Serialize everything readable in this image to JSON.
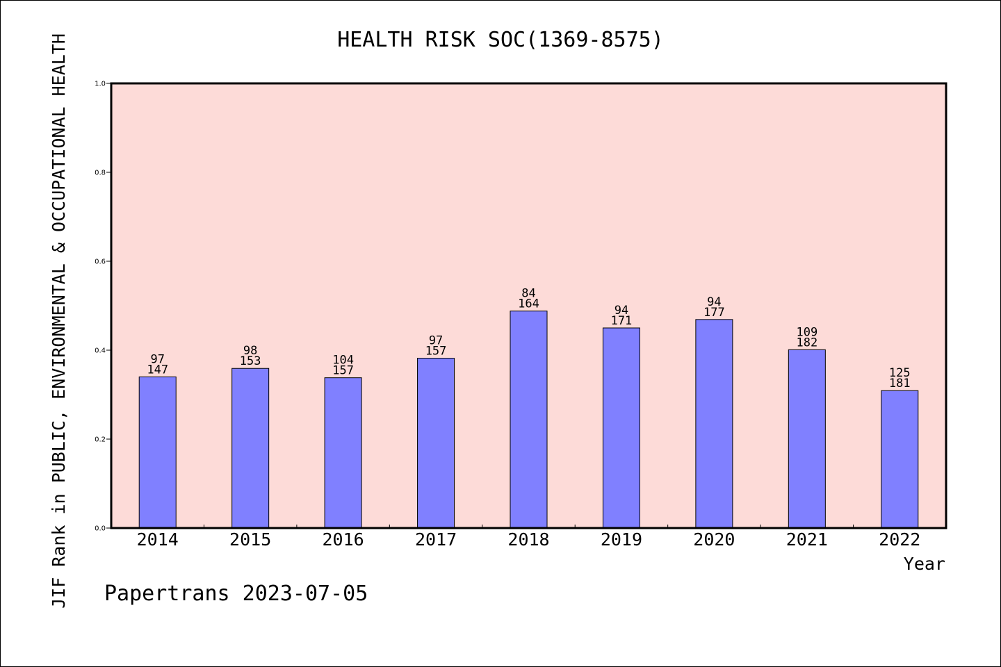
{
  "footer_text": "Papertrans 2023-07-05",
  "colors": {
    "plot_background": "#fddbd8",
    "bar_fill": "#8080ff",
    "axis": "#000000"
  },
  "chart_data": {
    "type": "bar",
    "title": "HEALTH RISK SOC(1369-8575)",
    "xlabel": "Year",
    "ylabel": "JIF Rank in PUBLIC, ENVIRONMENTAL & OCCUPATIONAL HEALTH",
    "ylim": [
      0,
      1.0
    ],
    "yticks": [
      "0.0",
      "0.2",
      "0.4",
      "0.6",
      "0.8",
      "1.0"
    ],
    "grid": false,
    "categories": [
      "2014",
      "2015",
      "2016",
      "2017",
      "2018",
      "2019",
      "2020",
      "2021",
      "2022"
    ],
    "values": [
      0.34,
      0.359,
      0.338,
      0.382,
      0.488,
      0.45,
      0.469,
      0.401,
      0.309
    ],
    "rank": [
      "97",
      "98",
      "104",
      "97",
      "84",
      "94",
      "94",
      "109",
      "125"
    ],
    "total": [
      "147",
      "153",
      "157",
      "157",
      "164",
      "171",
      "177",
      "182",
      "181"
    ]
  }
}
